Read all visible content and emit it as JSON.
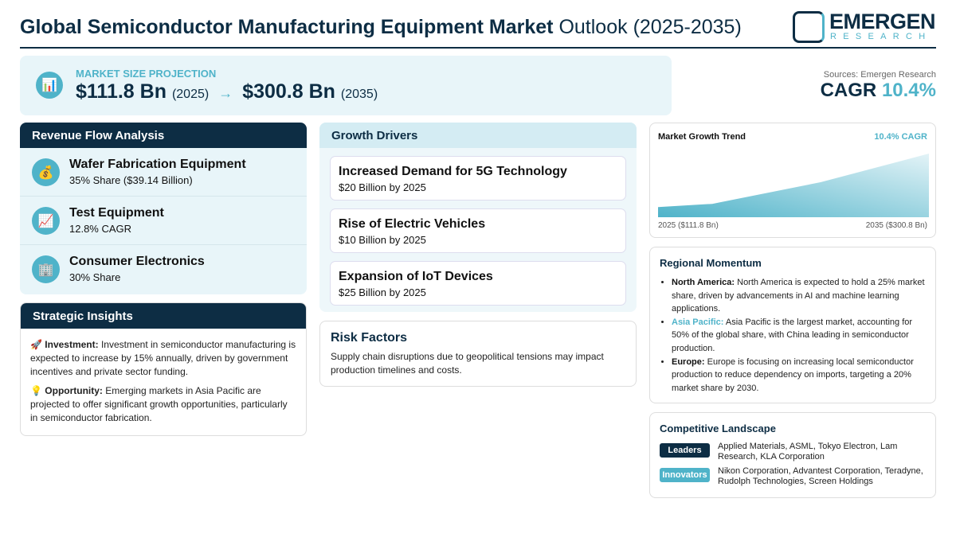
{
  "header": {
    "title_bold": "Global Semiconductor Manufacturing Equipment Market",
    "title_rest": " Outlook (2025-2035)",
    "logo_main": "EMERGEN",
    "logo_sub": "RESEARCH"
  },
  "projection": {
    "icon": "bar-chart-icon",
    "label": "MARKET SIZE PROJECTION",
    "start_value": "$111.8 Bn",
    "start_year": "(2025)",
    "arrow": "→",
    "end_value": "$300.8 Bn",
    "end_year": "(2035)"
  },
  "sources": "Sources: Emergen Research",
  "cagr": {
    "label": "CAGR",
    "value": "10.4%"
  },
  "revenue": {
    "title": "Revenue Flow Analysis",
    "items": [
      {
        "icon": "money-bag-icon",
        "glyph": "💰",
        "title": "Wafer Fabrication Equipment",
        "sub": "35% Share ($39.14 Billion)"
      },
      {
        "icon": "chart-increasing-icon",
        "glyph": "📈",
        "title": "Test Equipment",
        "sub": "12.8% CAGR"
      },
      {
        "icon": "office-building-icon",
        "glyph": "🏢",
        "title": "Consumer Electronics",
        "sub": "30% Share"
      }
    ]
  },
  "insights": {
    "title": "Strategic Insights",
    "items": [
      {
        "glyph": "🚀",
        "label": "Investment:",
        "text": " Investment in semiconductor manufacturing is expected to increase by 15% annually, driven by government incentives and private sector funding."
      },
      {
        "glyph": "💡",
        "label": "Opportunity:",
        "text": " Emerging markets in Asia Pacific are projected to offer significant growth opportunities, particularly in semiconductor fabrication."
      }
    ]
  },
  "drivers": {
    "title": "Growth Drivers",
    "items": [
      {
        "title": "Increased Demand for 5G Technology",
        "sub": "$20 Billion by 2025"
      },
      {
        "title": "Rise of Electric Vehicles",
        "sub": "$10 Billion by 2025"
      },
      {
        "title": "Expansion of IoT Devices",
        "sub": "$25 Billion by 2025"
      }
    ]
  },
  "risk": {
    "title": "Risk Factors",
    "text": "Supply chain disruptions due to geopolitical tensions may impact production timelines and costs."
  },
  "chart_data": {
    "type": "area",
    "title": "Market Growth Trend",
    "badge": "10.4% CAGR",
    "start_label": "2025 ($111.8 Bn)",
    "end_label": "2035 ($300.8 Bn)",
    "x": [
      2025,
      2027,
      2031,
      2035
    ],
    "values": [
      16,
      21,
      55,
      100
    ],
    "ylim": [
      0,
      100
    ],
    "grid": false,
    "colors": [
      "#4fb3c9",
      "#e3f3f7"
    ]
  },
  "regional": {
    "title": "Regional Momentum",
    "items": [
      {
        "label": "North America:",
        "text": " North America is expected to hold a 25% market share, driven by advancements in AI and machine learning applications."
      },
      {
        "label": "Asia Pacific:",
        "text": " Asia Pacific is the largest market, accounting for 50% of the global share, with China leading in semiconductor production."
      },
      {
        "label": "Europe:",
        "text": " Europe is focusing on increasing local semiconductor production to reduce dependency on imports, targeting a 20% market share by 2030."
      }
    ]
  },
  "competitive": {
    "title": "Competitive Landscape",
    "rows": [
      {
        "badge": "Leaders",
        "color": "#0d2d44",
        "names": "Applied Materials, ASML, Tokyo Electron, Lam Research, KLA Corporation"
      },
      {
        "badge": "Innovators",
        "color": "#4fb3c9",
        "names": "Nikon Corporation, Advantest Corporation, Teradyne, Rudolph Technologies, Screen Holdings"
      }
    ]
  }
}
